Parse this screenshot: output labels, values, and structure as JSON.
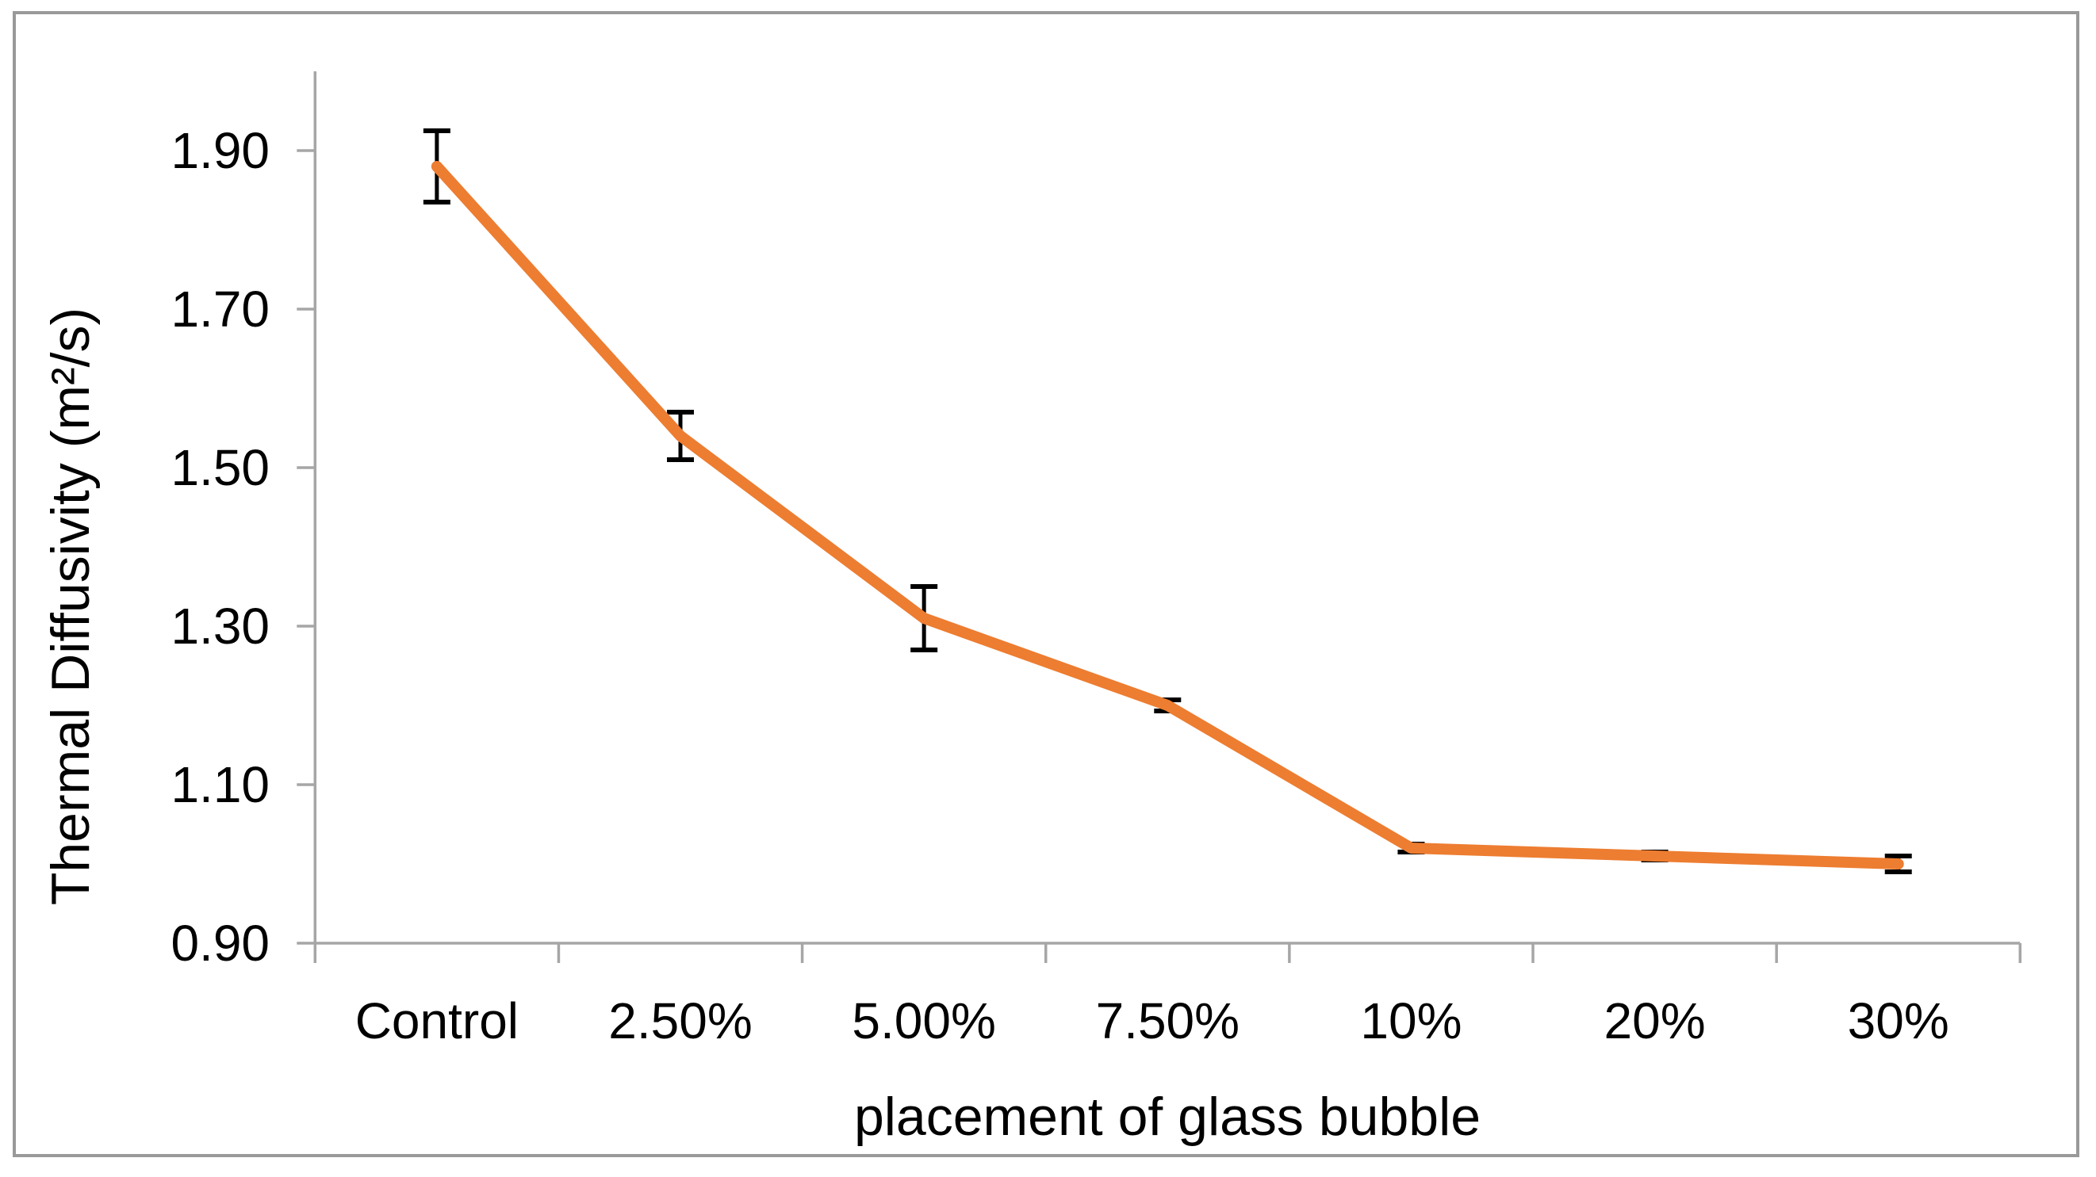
{
  "chart_data": {
    "type": "line",
    "title": "",
    "xlabel": "placement of glass bubble",
    "ylabel": "Thermal Diffusivity (m²/s)",
    "categories": [
      "Control",
      "2.50%",
      "5.00%",
      "7.50%",
      "10%",
      "20%",
      "30%"
    ],
    "values": [
      1.88,
      1.54,
      1.31,
      1.2,
      1.02,
      1.01,
      1.0
    ],
    "error_bars": [
      0.045,
      0.03,
      0.04,
      0.007,
      0.005,
      0.005,
      0.01
    ],
    "ylim": [
      0.9,
      2.0
    ],
    "y_tick_values": [
      1.9,
      1.7,
      1.5,
      1.3,
      1.1,
      0.9
    ],
    "y_tick_labels": [
      "1.90",
      "1.70",
      "1.50",
      "1.30",
      "1.10",
      "0.90"
    ],
    "grid": false,
    "legend": false,
    "legend_position": "none",
    "line_color": "#ED7D31",
    "error_bar_color": "#000000",
    "axis_color": "#A6A6A6",
    "text_color": "#000000",
    "border_color": "#999999"
  }
}
